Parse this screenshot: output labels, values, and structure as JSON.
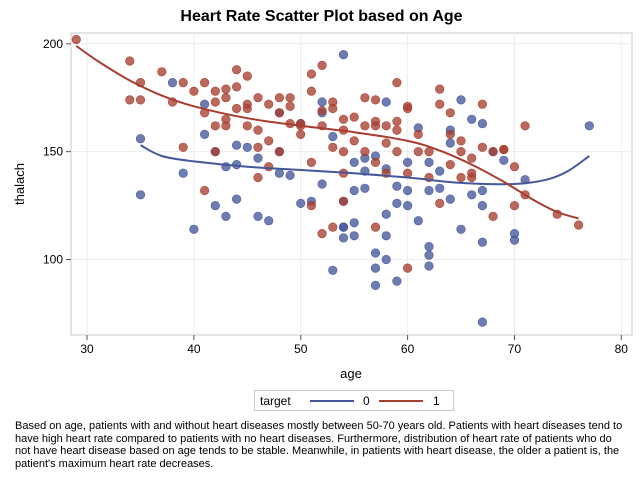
{
  "chart_data": {
    "type": "scatter",
    "title": "Heart Rate Scatter Plot based on Age",
    "xlabel": "age",
    "ylabel": "thalach",
    "xlim": [
      28.5,
      81
    ],
    "ylim": [
      65,
      205
    ],
    "xticks": [
      30,
      40,
      50,
      60,
      70,
      80
    ],
    "yticks": [
      100,
      150,
      200
    ],
    "grid": true,
    "legend": {
      "title": "target",
      "position": "bottom",
      "entries": [
        {
          "name": "0",
          "color": "#44579b"
        },
        {
          "name": "1",
          "color": "#a83d2f"
        }
      ]
    },
    "series": [
      {
        "name": "0",
        "color": "#44579b",
        "points": [
          [
            35,
            130
          ],
          [
            35,
            156
          ],
          [
            38,
            182
          ],
          [
            39,
            140
          ],
          [
            40,
            114
          ],
          [
            41,
            158
          ],
          [
            42,
            125
          ],
          [
            42,
            150
          ],
          [
            43,
            120
          ],
          [
            43,
            143
          ],
          [
            44,
            153
          ],
          [
            44,
            144
          ],
          [
            45,
            152
          ],
          [
            46,
            147
          ],
          [
            46,
            120
          ],
          [
            47,
            118
          ],
          [
            48,
            140
          ],
          [
            48,
            150
          ],
          [
            49,
            139
          ],
          [
            50,
            126
          ],
          [
            51,
            127
          ],
          [
            52,
            135
          ],
          [
            52,
            173
          ],
          [
            53,
            95
          ],
          [
            54,
            110
          ],
          [
            54,
            115
          ],
          [
            54,
            127
          ],
          [
            54,
            195
          ],
          [
            55,
            132
          ],
          [
            55,
            145
          ],
          [
            55,
            117
          ],
          [
            56,
            147
          ],
          [
            56,
            133
          ],
          [
            57,
            88
          ],
          [
            57,
            103
          ],
          [
            57,
            148
          ],
          [
            58,
            100
          ],
          [
            58,
            111
          ],
          [
            58,
            142
          ],
          [
            59,
            90
          ],
          [
            59,
            126
          ],
          [
            59,
            134
          ],
          [
            60,
            145
          ],
          [
            60,
            132
          ],
          [
            61,
            161
          ],
          [
            62,
            106
          ],
          [
            62,
            97
          ],
          [
            62,
            102
          ],
          [
            62,
            145
          ],
          [
            63,
            133
          ],
          [
            64,
            128
          ],
          [
            64,
            160
          ],
          [
            65,
            114
          ],
          [
            65,
            174
          ],
          [
            66,
            165
          ],
          [
            66,
            130
          ],
          [
            67,
            71
          ],
          [
            67,
            108
          ],
          [
            67,
            125
          ],
          [
            67,
            163
          ],
          [
            68,
            150
          ],
          [
            69,
            146
          ],
          [
            70,
            109
          ],
          [
            70,
            112
          ],
          [
            71,
            137
          ],
          [
            77,
            162
          ],
          [
            54,
            115
          ],
          [
            57,
            96
          ],
          [
            58,
            121
          ],
          [
            61,
            118
          ],
          [
            63,
            141
          ],
          [
            52,
            168
          ],
          [
            56,
            141
          ],
          [
            64,
            154
          ],
          [
            48,
            168
          ],
          [
            53,
            157
          ],
          [
            55,
            111
          ],
          [
            60,
            125
          ],
          [
            67,
            132
          ],
          [
            44,
            128
          ],
          [
            41,
            172
          ],
          [
            58,
            173
          ],
          [
            50,
            163
          ],
          [
            62,
            132
          ]
        ]
      },
      {
        "name": "1",
        "color": "#a83d2f",
        "points": [
          [
            29,
            202
          ],
          [
            34,
            174
          ],
          [
            34,
            192
          ],
          [
            35,
            182
          ],
          [
            35,
            174
          ],
          [
            37,
            187
          ],
          [
            38,
            173
          ],
          [
            39,
            182
          ],
          [
            39,
            152
          ],
          [
            40,
            178
          ],
          [
            41,
            182
          ],
          [
            41,
            168
          ],
          [
            41,
            132
          ],
          [
            42,
            173
          ],
          [
            42,
            178
          ],
          [
            42,
            162
          ],
          [
            42,
            150
          ],
          [
            43,
            179
          ],
          [
            43,
            165
          ],
          [
            43,
            175
          ],
          [
            44,
            188
          ],
          [
            44,
            180
          ],
          [
            44,
            170
          ],
          [
            45,
            185
          ],
          [
            45,
            172
          ],
          [
            45,
            162
          ],
          [
            46,
            175
          ],
          [
            46,
            160
          ],
          [
            46,
            138
          ],
          [
            47,
            143
          ],
          [
            47,
            172
          ],
          [
            48,
            175
          ],
          [
            48,
            168
          ],
          [
            48,
            150
          ],
          [
            49,
            171
          ],
          [
            49,
            163
          ],
          [
            50,
            158
          ],
          [
            50,
            163
          ],
          [
            51,
            186
          ],
          [
            51,
            178
          ],
          [
            51,
            145
          ],
          [
            51,
            125
          ],
          [
            52,
            190
          ],
          [
            52,
            169
          ],
          [
            52,
            162
          ],
          [
            53,
            173
          ],
          [
            53,
            152
          ],
          [
            53,
            115
          ],
          [
            54,
            165
          ],
          [
            54,
            160
          ],
          [
            54,
            150
          ],
          [
            54,
            140
          ],
          [
            55,
            166
          ],
          [
            56,
            162
          ],
          [
            56,
            150
          ],
          [
            57,
            174
          ],
          [
            57,
            162
          ],
          [
            57,
            164
          ],
          [
            57,
            115
          ],
          [
            58,
            162
          ],
          [
            58,
            154
          ],
          [
            59,
            182
          ],
          [
            59,
            164
          ],
          [
            59,
            160
          ],
          [
            60,
            171
          ],
          [
            60,
            140
          ],
          [
            60,
            96
          ],
          [
            61,
            158
          ],
          [
            62,
            150
          ],
          [
            62,
            138
          ],
          [
            63,
            172
          ],
          [
            63,
            179
          ],
          [
            64,
            144
          ],
          [
            64,
            158
          ],
          [
            65,
            155
          ],
          [
            65,
            150
          ],
          [
            66,
            138
          ],
          [
            66,
            140
          ],
          [
            67,
            172
          ],
          [
            67,
            152
          ],
          [
            68,
            120
          ],
          [
            69,
            151
          ],
          [
            70,
            125
          ],
          [
            70,
            143
          ],
          [
            71,
            162
          ],
          [
            71,
            130
          ],
          [
            74,
            121
          ],
          [
            76,
            116
          ],
          [
            58,
            140
          ],
          [
            53,
            170
          ],
          [
            61,
            150
          ],
          [
            55,
            155
          ],
          [
            47,
            155
          ],
          [
            52,
            112
          ],
          [
            63,
            126
          ],
          [
            65,
            138
          ],
          [
            69,
            151
          ],
          [
            68,
            150
          ],
          [
            50,
            162
          ],
          [
            43,
            162
          ],
          [
            56,
            175
          ],
          [
            60,
            170
          ],
          [
            45,
            170
          ],
          [
            66,
            147
          ],
          [
            59,
            150
          ],
          [
            54,
            127
          ],
          [
            49,
            175
          ],
          [
            46,
            152
          ],
          [
            64,
            168
          ],
          [
            57,
            145
          ]
        ]
      }
    ],
    "fit_lines": [
      {
        "name": "0",
        "color": "#44579b",
        "points": [
          [
            35,
            153
          ],
          [
            37,
            148
          ],
          [
            40,
            145.5
          ],
          [
            45,
            143
          ],
          [
            50,
            141.5
          ],
          [
            55,
            140
          ],
          [
            60,
            138
          ],
          [
            65,
            135.5
          ],
          [
            70,
            135
          ],
          [
            73,
            137
          ],
          [
            75,
            141
          ],
          [
            77,
            148
          ]
        ]
      },
      {
        "name": "1",
        "color": "#a83d2f",
        "points": [
          [
            29,
            199
          ],
          [
            31,
            192
          ],
          [
            34,
            183
          ],
          [
            37,
            176
          ],
          [
            40,
            171
          ],
          [
            45,
            165.5
          ],
          [
            50,
            162
          ],
          [
            55,
            159
          ],
          [
            60,
            155
          ],
          [
            63,
            150.5
          ],
          [
            66,
            144
          ],
          [
            69,
            136
          ],
          [
            72,
            127
          ],
          [
            74,
            122
          ],
          [
            76,
            119
          ]
        ]
      }
    ]
  },
  "caption": "Based on age, patients with and without heart diseases mostly between 50-70 years old. Patients with heart diseases tend to have high heart rate compared to patients with no heart diseases. Furthermore, distribution of heart rate of patients who do not have heart disease based on age tends to be stable. Meanwhile, in patients with heart disease, the older a patient is, the patient's maximum heart rate decreases."
}
